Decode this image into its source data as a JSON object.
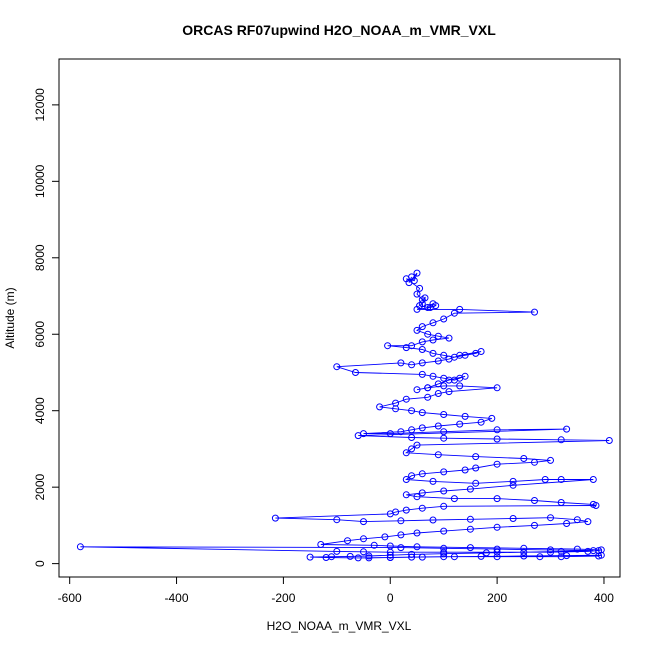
{
  "chart_data": {
    "type": "line",
    "title": "ORCAS RF07upwind H2O_NOAA_m_VMR_VXL",
    "xlabel": "H2O_NOAA_m_VMR_VXL",
    "ylabel": "Altitude (m)",
    "xlim": [
      -620,
      430
    ],
    "ylim": [
      -350,
      13200
    ],
    "xticks": [
      -600,
      -400,
      -200,
      0,
      200,
      400
    ],
    "xtick_labels": [
      "-600",
      "-400",
      "-200",
      "0",
      "200",
      "400"
    ],
    "yticks": [
      0,
      2000,
      4000,
      6000,
      8000,
      10000,
      12000
    ],
    "ytick_labels": [
      "0",
      "2000",
      "4000",
      "6000",
      "8000",
      "10000",
      "12000"
    ],
    "grid": false,
    "series_color": "#0000ff",
    "markers": "open-circle",
    "series": [
      {
        "x": [
          40,
          35,
          50,
          45,
          30,
          55,
          50,
          60,
          65,
          60,
          55,
          70,
          80,
          85,
          75,
          50,
          130,
          270,
          120,
          100,
          80,
          60,
          50,
          70,
          90,
          110,
          80,
          60,
          40,
          -5,
          30,
          60,
          80,
          100,
          120,
          140,
          160,
          170,
          130,
          110,
          90,
          60,
          40,
          20,
          -100,
          -65,
          60,
          80,
          100,
          120,
          130,
          140,
          110,
          90,
          70,
          50,
          70,
          100,
          130,
          200,
          110,
          90,
          70,
          30,
          10,
          -20,
          10,
          40,
          60,
          100,
          140,
          190,
          170,
          130,
          90,
          60,
          40,
          20,
          -50,
          0,
          100,
          200,
          330,
          -60,
          40,
          100,
          200,
          320,
          410,
          50,
          40,
          30,
          90,
          160,
          250,
          300,
          270,
          200,
          160,
          140,
          100,
          60,
          40,
          30,
          80,
          160,
          230,
          290,
          320,
          380,
          230,
          150,
          100,
          60,
          30,
          50,
          120,
          200,
          270,
          320,
          380,
          385,
          100,
          60,
          30,
          10,
          0,
          -215,
          -100,
          -50,
          20,
          80,
          150,
          230,
          300,
          350,
          370,
          330,
          270,
          200,
          150,
          100,
          50,
          20,
          -10,
          -50,
          -80,
          -130,
          -30,
          0,
          50,
          150,
          250,
          350,
          395,
          390,
          370,
          300,
          200,
          100,
          0,
          -50,
          -100,
          -580,
          20,
          100,
          200,
          300,
          380,
          320,
          250,
          180,
          100,
          40,
          0,
          -40,
          -75,
          -110,
          -150,
          -120,
          -60,
          0,
          60,
          120,
          200,
          280,
          320,
          390,
          395,
          330,
          250,
          170,
          100,
          40,
          0,
          -40
        ],
        "y": [
          7500,
          7350,
          7600,
          7400,
          7450,
          7200,
          7050,
          6900,
          6950,
          6800,
          6750,
          6700,
          6800,
          6750,
          6700,
          6650,
          6650,
          6580,
          6550,
          6400,
          6300,
          6200,
          6100,
          6000,
          5950,
          5900,
          5850,
          5800,
          5700,
          5700,
          5650,
          5600,
          5500,
          5450,
          5400,
          5450,
          5500,
          5550,
          5450,
          5350,
          5300,
          5250,
          5200,
          5250,
          5150,
          5000,
          4950,
          4900,
          4850,
          4800,
          4850,
          4900,
          4800,
          4700,
          4600,
          4550,
          4600,
          4650,
          4650,
          4600,
          4500,
          4450,
          4350,
          4300,
          4200,
          4100,
          4050,
          4000,
          3950,
          3900,
          3850,
          3800,
          3700,
          3650,
          3600,
          3550,
          3500,
          3450,
          3400,
          3400,
          3450,
          3500,
          3520,
          3350,
          3300,
          3280,
          3260,
          3240,
          3220,
          3100,
          3000,
          2900,
          2850,
          2800,
          2750,
          2700,
          2650,
          2600,
          2500,
          2450,
          2400,
          2350,
          2300,
          2200,
          2150,
          2100,
          2150,
          2200,
          2200,
          2200,
          2050,
          1950,
          1900,
          1850,
          1800,
          1750,
          1700,
          1700,
          1650,
          1600,
          1550,
          1520,
          1500,
          1450,
          1400,
          1350,
          1300,
          1190,
          1150,
          1100,
          1120,
          1140,
          1160,
          1180,
          1200,
          1150,
          1100,
          1050,
          1000,
          950,
          900,
          850,
          800,
          750,
          700,
          650,
          600,
          500,
          480,
          460,
          440,
          420,
          400,
          380,
          360,
          340,
          320,
          300,
          300,
          300,
          300,
          310,
          320,
          440,
          420,
          400,
          380,
          360,
          340,
          320,
          300,
          280,
          260,
          240,
          220,
          200,
          190,
          180,
          170,
          160,
          150,
          160,
          170,
          180,
          180,
          180,
          180,
          200,
          220,
          210,
          200,
          190,
          180,
          170,
          160,
          150
        ]
      }
    ]
  }
}
